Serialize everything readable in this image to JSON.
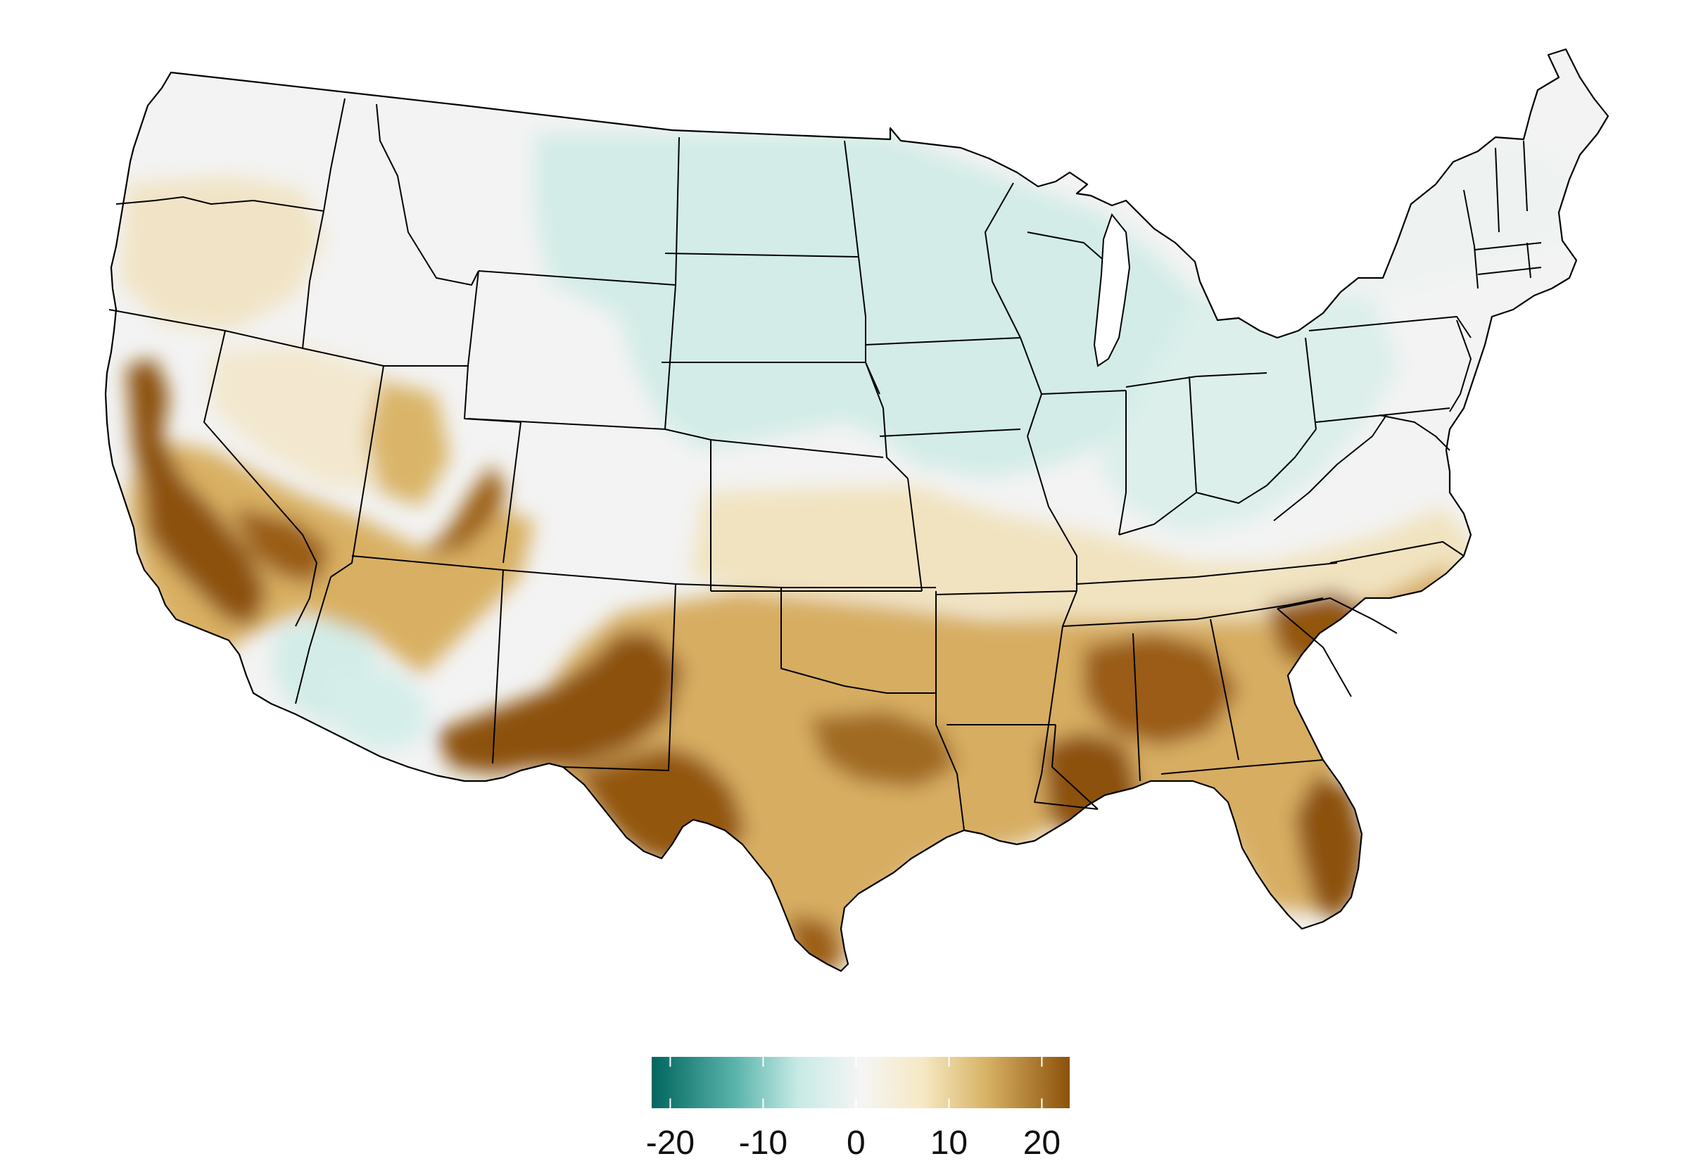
{
  "legend": {
    "ticks": [
      {
        "value": -20,
        "label": "-20"
      },
      {
        "value": -10,
        "label": "-10"
      },
      {
        "value": 0,
        "label": "0"
      },
      {
        "value": 10,
        "label": "10"
      },
      {
        "value": 20,
        "label": "20"
      }
    ],
    "range": [
      -22,
      23
    ],
    "palette": [
      {
        "stop": 0.0,
        "color": "#01665e"
      },
      {
        "stop": 0.2,
        "color": "#5ab4ac"
      },
      {
        "stop": 0.35,
        "color": "#c7eae5"
      },
      {
        "stop": 0.5,
        "color": "#f5f5f5"
      },
      {
        "stop": 0.65,
        "color": "#f6e8c3"
      },
      {
        "stop": 0.8,
        "color": "#d8b365"
      },
      {
        "stop": 1.0,
        "color": "#8c510a"
      }
    ]
  },
  "map_colors": {
    "land_neutral": "#f3f3f3",
    "land_teal": "#d3ece7",
    "land_tan": "#f1e4c6",
    "land_gold": "#d7ad62",
    "land_brown": "#8c510a",
    "border": "#000000"
  }
}
